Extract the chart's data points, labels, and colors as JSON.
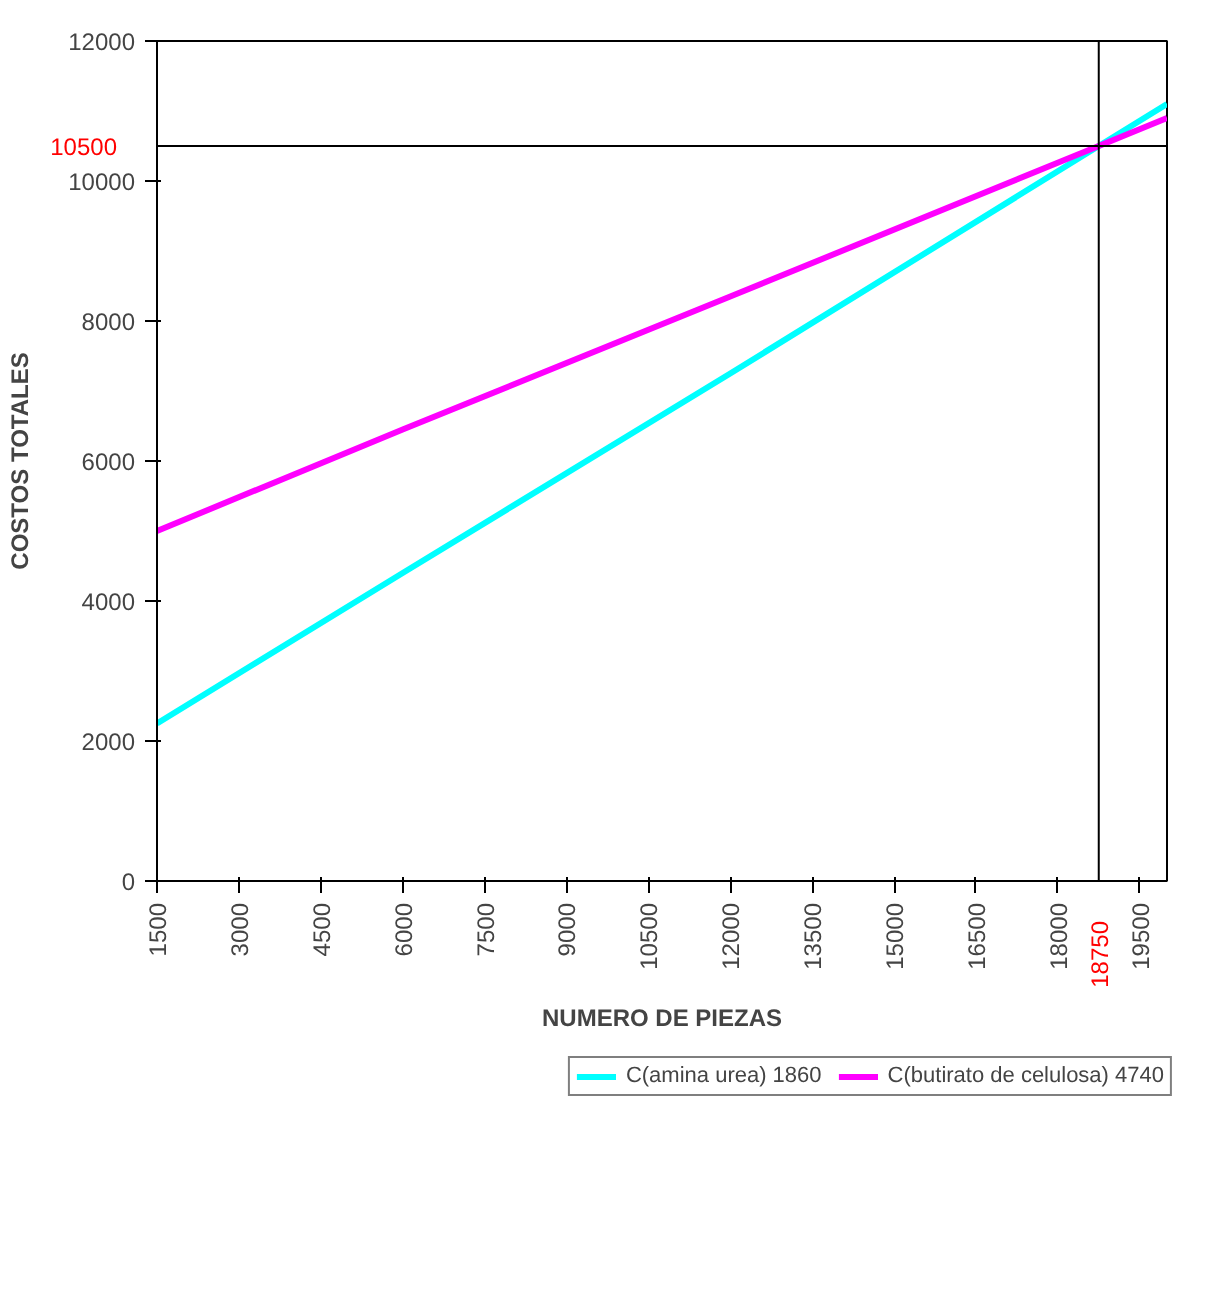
{
  "chart_data": {
    "type": "line",
    "xlabel": "NUMERO DE PIEZAS",
    "ylabel": "COSTOS TOTALES",
    "x": [
      1500,
      6000,
      12000,
      18750,
      20000
    ],
    "series": [
      {
        "name": "C(amina urea) 1860",
        "color": "#00ffff",
        "values": [
          2250,
          4400,
          7250,
          10500,
          11100
        ]
      },
      {
        "name": "C(butirato de celulosa) 4740",
        "color": "#ff00ff",
        "values": [
          5000,
          6450,
          8350,
          10500,
          10900
        ]
      }
    ],
    "xlim": [
      1500,
      20000
    ],
    "ylim": [
      0,
      12000
    ],
    "xticks": [
      1500,
      3000,
      4500,
      6000,
      7500,
      9000,
      10500,
      12000,
      13500,
      15000,
      16500,
      18000,
      19500
    ],
    "yticks": [
      0,
      2000,
      4000,
      6000,
      8000,
      10000,
      12000
    ],
    "ref_lines": [
      {
        "axis": "y",
        "value": 10500,
        "label": "10500",
        "color": "#000000"
      },
      {
        "axis": "x",
        "value": 18750,
        "label": "18750",
        "color": "#000000"
      }
    ],
    "grid": false,
    "legend": "bottom",
    "marker": "none",
    "line_style": "solid"
  }
}
